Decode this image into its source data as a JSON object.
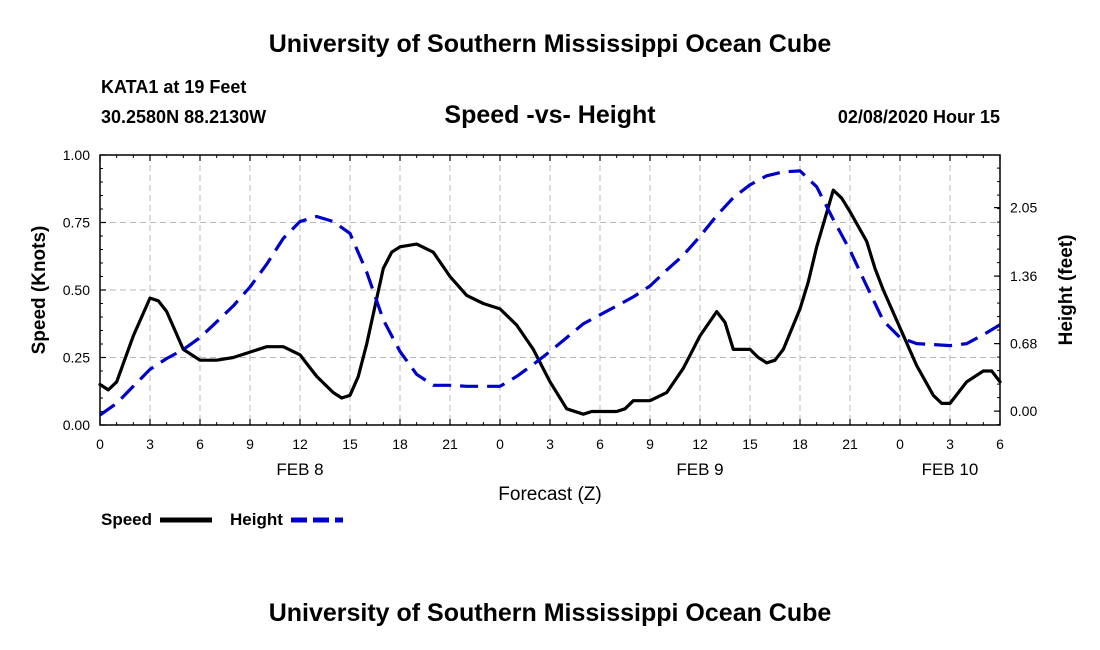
{
  "header": {
    "title": "University of Southern Mississippi Ocean Cube",
    "station": "KATA1 at 19 Feet",
    "coordinates": "30.2580N 88.2130W",
    "subtitle": "Speed -vs- Height",
    "datetime": "02/08/2020 Hour 15"
  },
  "footer": {
    "title": "University of Southern Mississippi Ocean Cube"
  },
  "legend": {
    "speed_label": "Speed",
    "height_label": "Height"
  },
  "chart_data": {
    "type": "line",
    "title": "Speed -vs- Height",
    "xlabel": "Forecast (Z)",
    "ylabel": "Speed (Knots)",
    "y2label": "Height (feet)",
    "grid": true,
    "xlim": [
      0,
      54
    ],
    "ylim": [
      0,
      1.0
    ],
    "y2lim": [
      -0.14,
      2.58
    ],
    "x_ticks": [
      0,
      3,
      6,
      9,
      12,
      15,
      18,
      21,
      24,
      27,
      30,
      33,
      36,
      39,
      42,
      45,
      48,
      51,
      54
    ],
    "x_tick_labels": [
      "0",
      "3",
      "6",
      "9",
      "12",
      "15",
      "18",
      "21",
      "0",
      "3",
      "6",
      "9",
      "12",
      "15",
      "18",
      "21",
      "0",
      "3",
      "6"
    ],
    "day_labels": [
      {
        "x": 12,
        "label": "FEB 8"
      },
      {
        "x": 36,
        "label": "FEB 9"
      },
      {
        "x": 51,
        "label": "FEB 10"
      }
    ],
    "y_ticks": [
      0.0,
      0.25,
      0.5,
      0.75,
      1.0
    ],
    "y_tick_labels": [
      "0.00",
      "0.25",
      "0.50",
      "0.75",
      "1.00"
    ],
    "y2_ticks": [
      0.0,
      0.68,
      1.36,
      2.05
    ],
    "y2_tick_labels": [
      "0.00",
      "0.68",
      "1.36",
      "2.05"
    ],
    "series": [
      {
        "name": "Speed",
        "axis": "left",
        "color": "#000000",
        "dash": "solid",
        "x": [
          0,
          0.5,
          1,
          2,
          3,
          3.5,
          4,
          5,
          6,
          7,
          8,
          9,
          10,
          11,
          12,
          12.5,
          13,
          14,
          14.5,
          15,
          15.5,
          16,
          17,
          17.5,
          18,
          19,
          20,
          21,
          22,
          23,
          24,
          25,
          26,
          27,
          28,
          29,
          29.5,
          30,
          31,
          31.5,
          32,
          33,
          34,
          35,
          36,
          37,
          37.5,
          38,
          39,
          39.5,
          40,
          40.5,
          41,
          42,
          42.5,
          43,
          44,
          44.5,
          45,
          46,
          46.5,
          47,
          48,
          49,
          50,
          50.5,
          51,
          52,
          53,
          53.5,
          54
        ],
        "values": [
          0.15,
          0.13,
          0.16,
          0.33,
          0.47,
          0.46,
          0.42,
          0.28,
          0.24,
          0.24,
          0.25,
          0.27,
          0.29,
          0.29,
          0.26,
          0.22,
          0.18,
          0.12,
          0.1,
          0.11,
          0.18,
          0.3,
          0.58,
          0.64,
          0.66,
          0.67,
          0.64,
          0.55,
          0.48,
          0.45,
          0.43,
          0.37,
          0.28,
          0.16,
          0.06,
          0.04,
          0.05,
          0.05,
          0.05,
          0.06,
          0.09,
          0.09,
          0.12,
          0.21,
          0.33,
          0.42,
          0.38,
          0.28,
          0.28,
          0.25,
          0.23,
          0.24,
          0.28,
          0.43,
          0.53,
          0.66,
          0.87,
          0.84,
          0.79,
          0.68,
          0.58,
          0.5,
          0.36,
          0.22,
          0.11,
          0.08,
          0.08,
          0.16,
          0.2,
          0.2,
          0.16
        ]
      },
      {
        "name": "Height",
        "axis": "right",
        "color": "#0000cc",
        "dash": "dashed",
        "x": [
          0,
          1,
          2,
          3,
          4,
          5,
          6,
          7,
          8,
          9,
          10,
          11,
          12,
          13,
          14,
          15,
          16,
          17,
          18,
          19,
          20,
          21,
          22,
          23,
          24,
          25,
          26,
          27,
          28,
          29,
          30,
          31,
          32,
          33,
          34,
          35,
          36,
          37,
          38,
          39,
          40,
          41,
          42,
          43,
          44,
          45,
          46,
          47,
          48,
          49,
          50,
          51,
          52,
          53,
          54
        ],
        "values": [
          -0.04,
          0.08,
          0.25,
          0.42,
          0.53,
          0.62,
          0.74,
          0.9,
          1.06,
          1.25,
          1.48,
          1.74,
          1.91,
          1.96,
          1.91,
          1.79,
          1.4,
          0.92,
          0.6,
          0.37,
          0.26,
          0.26,
          0.25,
          0.25,
          0.25,
          0.35,
          0.47,
          0.6,
          0.74,
          0.88,
          0.97,
          1.06,
          1.15,
          1.26,
          1.42,
          1.57,
          1.76,
          1.97,
          2.15,
          2.28,
          2.37,
          2.41,
          2.42,
          2.26,
          1.93,
          1.62,
          1.26,
          0.91,
          0.74,
          0.68,
          0.67,
          0.66,
          0.68,
          0.77,
          0.87
        ]
      }
    ]
  }
}
